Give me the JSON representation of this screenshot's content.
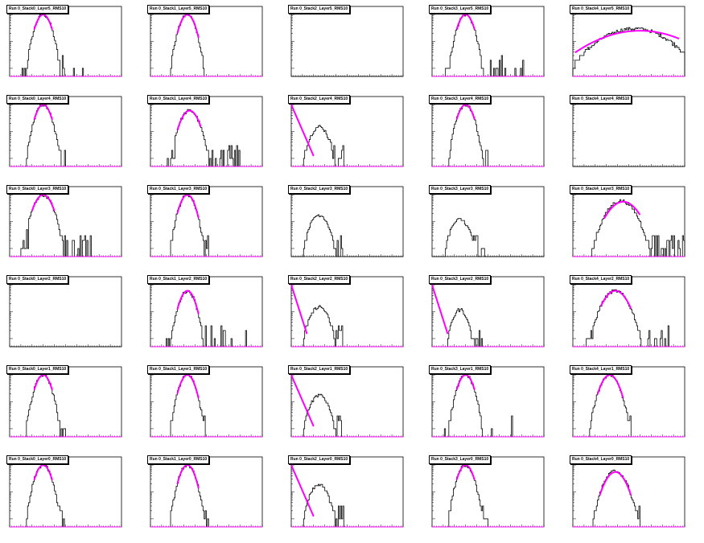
{
  "page": {
    "background": "#ffffff"
  },
  "colors": {
    "histogram": "#000000",
    "fit": "#ff00ff",
    "frame": "#000000"
  },
  "layout": {
    "rows": 6,
    "cols": 5
  },
  "chart_data": [
    {
      "id": "s0l5",
      "title": "Run 0_Stack0_Layer5_RMS10",
      "type": "histogram",
      "log_y": true,
      "ylim": [
        0.5,
        200
      ],
      "peak": {
        "mu": 0.3,
        "sigma": 0.05,
        "height": 100
      },
      "tail": "sparse",
      "fit": {
        "shape": "gauss",
        "mu": 0.3,
        "sigma": 0.05,
        "height": 100,
        "range": [
          0.22,
          0.38
        ]
      }
    },
    {
      "id": "s1l5",
      "title": "Run 0_Stack1_Layer5_RMS10",
      "type": "histogram",
      "log_y": true,
      "ylim": [
        0.5,
        200
      ],
      "peak": {
        "mu": 0.33,
        "sigma": 0.05,
        "height": 100
      },
      "tail": "none",
      "fit": {
        "shape": "gauss",
        "mu": 0.33,
        "sigma": 0.05,
        "height": 100,
        "range": [
          0.24,
          0.43
        ]
      }
    },
    {
      "id": "s2l5",
      "title": "Run 0_Stack2_Layer5_RMS10",
      "type": "histogram",
      "log_y": true,
      "ylim": [
        0.5,
        200
      ],
      "peak": null,
      "tail": "none",
      "fit": null
    },
    {
      "id": "s3l5",
      "title": "Run 0_Stack3_Layer5_RMS10",
      "type": "histogram",
      "log_y": true,
      "ylim": [
        0.5,
        200
      ],
      "peak": {
        "mu": 0.3,
        "sigma": 0.05,
        "height": 100
      },
      "tail": "sparse",
      "fit": {
        "shape": "gauss",
        "mu": 0.3,
        "sigma": 0.05,
        "height": 100,
        "range": [
          0.22,
          0.38
        ]
      }
    },
    {
      "id": "s4l5",
      "title": "Run 0_Stack4_Layer5_RMS10",
      "type": "histogram",
      "log_y": true,
      "ylim": [
        0.5,
        200
      ],
      "peak": {
        "mu": 0.55,
        "sigma": 0.22,
        "height": 30
      },
      "tail": "broad",
      "fit": {
        "shape": "gauss",
        "mu": 0.6,
        "sigma": 0.3,
        "height": 25,
        "range": [
          0.02,
          0.95
        ]
      }
    },
    {
      "id": "s0l4",
      "title": "Run 0_Stack0_Layer4_RMS10",
      "type": "histogram",
      "log_y": true,
      "ylim": [
        0.5,
        200
      ],
      "peak": {
        "mu": 0.3,
        "sigma": 0.05,
        "height": 100
      },
      "tail": "short",
      "fit": {
        "shape": "gauss",
        "mu": 0.3,
        "sigma": 0.05,
        "height": 100,
        "range": [
          0.22,
          0.38
        ]
      }
    },
    {
      "id": "s1l4",
      "title": "Run 0_Stack1_Layer4_RMS10",
      "type": "histogram",
      "log_y": true,
      "ylim": [
        0.5,
        200
      ],
      "peak": {
        "mu": 0.35,
        "sigma": 0.06,
        "height": 60
      },
      "tail": "long",
      "fit": {
        "shape": "gauss",
        "mu": 0.35,
        "sigma": 0.06,
        "height": 60,
        "range": [
          0.24,
          0.45
        ]
      }
    },
    {
      "id": "s2l4",
      "title": "Run 0_Stack2_Layer4_RMS10",
      "type": "histogram",
      "log_y": true,
      "ylim": [
        0.5,
        200
      ],
      "peak": {
        "mu": 0.25,
        "sigma": 0.06,
        "height": 15
      },
      "tail": "short",
      "fit": {
        "shape": "exp",
        "slope": -22,
        "height": 100,
        "range": [
          0.0,
          0.2
        ]
      }
    },
    {
      "id": "s3l4",
      "title": "Run 0_Stack3_Layer4_RMS10",
      "type": "histogram",
      "log_y": true,
      "ylim": [
        0.5,
        200
      ],
      "peak": {
        "mu": 0.3,
        "sigma": 0.05,
        "height": 100
      },
      "tail": "short",
      "fit": {
        "shape": "gauss",
        "mu": 0.3,
        "sigma": 0.05,
        "height": 100,
        "range": [
          0.22,
          0.38
        ]
      }
    },
    {
      "id": "s4l4",
      "title": "Run 0_Stack4_Layer4_RMS10",
      "type": "histogram",
      "log_y": true,
      "ylim": [
        0.5,
        200
      ],
      "peak": null,
      "tail": "none",
      "fit": null
    },
    {
      "id": "s0l3",
      "title": "Run 0_Stack0_Layer3_RMS10",
      "type": "histogram",
      "log_y": true,
      "ylim": [
        0.5,
        200
      ],
      "peak": {
        "mu": 0.3,
        "sigma": 0.06,
        "height": 100
      },
      "tail": "long",
      "fit": {
        "shape": "gauss",
        "mu": 0.3,
        "sigma": 0.06,
        "height": 100,
        "range": [
          0.2,
          0.4
        ]
      }
    },
    {
      "id": "s1l3",
      "title": "Run 0_Stack1_Layer3_RMS10",
      "type": "histogram",
      "log_y": true,
      "ylim": [
        0.5,
        200
      ],
      "peak": {
        "mu": 0.33,
        "sigma": 0.05,
        "height": 100
      },
      "tail": "short",
      "fit": {
        "shape": "gauss",
        "mu": 0.33,
        "sigma": 0.05,
        "height": 100,
        "range": [
          0.24,
          0.43
        ]
      }
    },
    {
      "id": "s2l3",
      "title": "Run 0_Stack2_Layer3_RMS10",
      "type": "histogram",
      "log_y": true,
      "ylim": [
        0.5,
        200
      ],
      "peak": {
        "mu": 0.25,
        "sigma": 0.06,
        "height": 18
      },
      "tail": "short",
      "fit": null
    },
    {
      "id": "s3l3",
      "title": "Run 0_Stack3_Layer3_RMS10",
      "type": "histogram",
      "log_y": true,
      "ylim": [
        0.5,
        200
      ],
      "peak": {
        "mu": 0.25,
        "sigma": 0.06,
        "height": 12
      },
      "tail": "short",
      "fit": null
    },
    {
      "id": "s4l3",
      "title": "Run 0_Stack4_Layer3_RMS10",
      "type": "histogram",
      "log_y": true,
      "ylim": [
        0.5,
        200
      ],
      "peak": {
        "mu": 0.43,
        "sigma": 0.09,
        "height": 60
      },
      "tail": "broad",
      "fit": {
        "shape": "gauss",
        "mu": 0.45,
        "sigma": 0.1,
        "height": 55,
        "range": [
          0.28,
          0.6
        ]
      }
    },
    {
      "id": "s0l2",
      "title": "Run 0_Stack0_Layer2_RMS10",
      "type": "histogram",
      "log_y": true,
      "ylim": [
        0.5,
        200
      ],
      "peak": null,
      "tail": "none",
      "fit": null
    },
    {
      "id": "s1l2",
      "title": "Run 0_Stack1_Layer2_RMS10",
      "type": "histogram",
      "log_y": true,
      "ylim": [
        0.5,
        200
      ],
      "peak": {
        "mu": 0.33,
        "sigma": 0.05,
        "height": 60
      },
      "tail": "sparse",
      "fit": {
        "shape": "gauss",
        "mu": 0.33,
        "sigma": 0.05,
        "height": 60,
        "range": [
          0.24,
          0.43
        ]
      }
    },
    {
      "id": "s2l2",
      "title": "Run 0_Stack2_Layer2_RMS10",
      "type": "histogram",
      "log_y": true,
      "ylim": [
        0.5,
        200
      ],
      "peak": {
        "mu": 0.25,
        "sigma": 0.06,
        "height": 15
      },
      "tail": "short",
      "fit": {
        "shape": "exp",
        "slope": -30,
        "height": 100,
        "range": [
          0.0,
          0.14
        ]
      }
    },
    {
      "id": "s3l2",
      "title": "Run 0_Stack3_Layer2_RMS10",
      "type": "histogram",
      "log_y": true,
      "ylim": [
        0.5,
        200
      ],
      "peak": {
        "mu": 0.25,
        "sigma": 0.05,
        "height": 12
      },
      "tail": "short",
      "fit": {
        "shape": "exp",
        "slope": -30,
        "height": 100,
        "range": [
          0.0,
          0.14
        ]
      }
    },
    {
      "id": "s4l2",
      "title": "Run 0_Stack4_Layer2_RMS10",
      "type": "histogram",
      "log_y": true,
      "ylim": [
        0.5,
        200
      ],
      "peak": {
        "mu": 0.38,
        "sigma": 0.08,
        "height": 60
      },
      "tail": "long",
      "fit": {
        "shape": "gauss",
        "mu": 0.38,
        "sigma": 0.08,
        "height": 60,
        "range": [
          0.25,
          0.52
        ]
      }
    },
    {
      "id": "s0l1",
      "title": "Run 0_Stack0_Layer1_RMS10",
      "type": "histogram",
      "log_y": true,
      "ylim": [
        0.5,
        200
      ],
      "peak": {
        "mu": 0.3,
        "sigma": 0.05,
        "height": 100
      },
      "tail": "short",
      "fit": {
        "shape": "gauss",
        "mu": 0.3,
        "sigma": 0.05,
        "height": 100,
        "range": [
          0.22,
          0.38
        ]
      }
    },
    {
      "id": "s1l1",
      "title": "Run 0_Stack1_Layer1_RMS10",
      "type": "histogram",
      "log_y": true,
      "ylim": [
        0.5,
        200
      ],
      "peak": {
        "mu": 0.33,
        "sigma": 0.05,
        "height": 100
      },
      "tail": "short",
      "fit": {
        "shape": "gauss",
        "mu": 0.33,
        "sigma": 0.05,
        "height": 100,
        "range": [
          0.24,
          0.43
        ]
      }
    },
    {
      "id": "s2l1",
      "title": "Run 0_Stack2_Layer1_RMS10",
      "type": "histogram",
      "log_y": true,
      "ylim": [
        0.5,
        200
      ],
      "peak": {
        "mu": 0.25,
        "sigma": 0.06,
        "height": 18
      },
      "tail": "short",
      "fit": {
        "shape": "exp",
        "slope": -22,
        "height": 100,
        "range": [
          0.0,
          0.2
        ]
      }
    },
    {
      "id": "s3l1",
      "title": "Run 0_Stack3_Layer1_RMS10",
      "type": "histogram",
      "log_y": true,
      "ylim": [
        0.5,
        200
      ],
      "peak": {
        "mu": 0.3,
        "sigma": 0.05,
        "height": 100
      },
      "tail": "sparse",
      "fit": {
        "shape": "gauss",
        "mu": 0.3,
        "sigma": 0.05,
        "height": 100,
        "range": [
          0.22,
          0.38
        ]
      }
    },
    {
      "id": "s4l1",
      "title": "Run 0_Stack4_Layer1_RMS10",
      "type": "histogram",
      "log_y": true,
      "ylim": [
        0.5,
        200
      ],
      "peak": {
        "mu": 0.33,
        "sigma": 0.06,
        "height": 100
      },
      "tail": "short",
      "fit": {
        "shape": "gauss",
        "mu": 0.33,
        "sigma": 0.06,
        "height": 100,
        "range": [
          0.22,
          0.45
        ]
      }
    },
    {
      "id": "s0l0",
      "title": "Run 0_Stack0_Layer0_RMS10",
      "type": "histogram",
      "log_y": true,
      "ylim": [
        0.5,
        200
      ],
      "peak": {
        "mu": 0.3,
        "sigma": 0.05,
        "height": 100
      },
      "tail": "short",
      "fit": {
        "shape": "gauss",
        "mu": 0.3,
        "sigma": 0.05,
        "height": 100,
        "range": [
          0.22,
          0.38
        ]
      }
    },
    {
      "id": "s1l0",
      "title": "Run 0_Stack1_Layer0_RMS10",
      "type": "histogram",
      "log_y": true,
      "ylim": [
        0.5,
        200
      ],
      "peak": {
        "mu": 0.33,
        "sigma": 0.05,
        "height": 100
      },
      "tail": "short",
      "fit": {
        "shape": "gauss",
        "mu": 0.33,
        "sigma": 0.05,
        "height": 100,
        "range": [
          0.24,
          0.43
        ]
      }
    },
    {
      "id": "s2l0",
      "title": "Run 0_Stack2_Layer0_RMS10",
      "type": "histogram",
      "log_y": true,
      "ylim": [
        0.5,
        200
      ],
      "peak": {
        "mu": 0.25,
        "sigma": 0.06,
        "height": 18
      },
      "tail": "short",
      "fit": {
        "shape": "exp",
        "slope": -22,
        "height": 100,
        "range": [
          0.0,
          0.2
        ]
      }
    },
    {
      "id": "s3l0",
      "title": "Run 0_Stack3_Layer0_RMS10",
      "type": "histogram",
      "log_y": true,
      "ylim": [
        0.5,
        200
      ],
      "peak": {
        "mu": 0.3,
        "sigma": 0.05,
        "height": 100
      },
      "tail": "short",
      "fit": {
        "shape": "gauss",
        "mu": 0.3,
        "sigma": 0.05,
        "height": 100,
        "range": [
          0.22,
          0.38
        ]
      }
    },
    {
      "id": "s4l0",
      "title": "Run 0_Stack4_Layer0_RMS10",
      "type": "histogram",
      "log_y": true,
      "ylim": [
        0.5,
        200
      ],
      "peak": {
        "mu": 0.38,
        "sigma": 0.07,
        "height": 60
      },
      "tail": "short",
      "fit": {
        "shape": "gauss",
        "mu": 0.38,
        "sigma": 0.07,
        "height": 55,
        "range": [
          0.24,
          0.52
        ]
      }
    }
  ]
}
